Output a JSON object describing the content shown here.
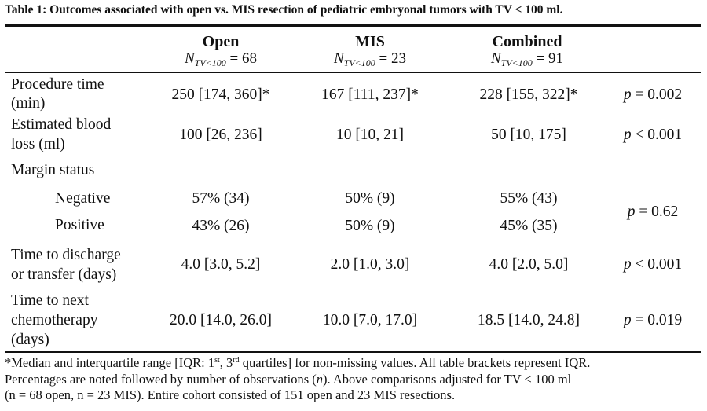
{
  "caption": "Table 1: Outcomes associated with open vs. MIS resection of pediatric embryonal tumors with TV < 100 ml.",
  "columns": [
    {
      "title": "Open",
      "n_symbol": "N",
      "n_sub": "TV<100",
      "n_value": "= 68"
    },
    {
      "title": "MIS",
      "n_symbol": "N",
      "n_sub": "TV<100",
      "n_value": "= 23"
    },
    {
      "title": "Combined",
      "n_symbol": "N",
      "n_sub": "TV<100",
      "n_value": "= 91"
    }
  ],
  "rows": {
    "procedure_time": {
      "label_1": "Procedure time",
      "label_2": "(min)",
      "open": "250 [174, 360]*",
      "mis": "167 [111, 237]*",
      "combined": "228 [155, 322]*",
      "p_symbol": "p",
      "p_value": "= 0.002"
    },
    "blood_loss": {
      "label_1": "Estimated blood",
      "label_2": "loss (ml)",
      "open": "100 [26, 236]",
      "mis": "10 [10, 21]",
      "combined": "50 [10, 175]",
      "p_symbol": "p",
      "p_value": "< 0.001"
    },
    "margin_status": {
      "label": "Margin status",
      "negative": {
        "label": "Negative",
        "open": "57% (34)",
        "mis": "50% (9)",
        "combined": "55% (43)"
      },
      "positive": {
        "label": "Positive",
        "open": "43% (26)",
        "mis": "50% (9)",
        "combined": "45% (35)"
      },
      "p_symbol": "p",
      "p_value": "= 0.62"
    },
    "discharge": {
      "label_1": "Time to discharge",
      "label_2": "or transfer (days)",
      "open": "4.0 [3.0, 5.2]",
      "mis": "2.0 [1.0, 3.0]",
      "combined": "4.0 [2.0, 5.0]",
      "p_symbol": "p",
      "p_value": "< 0.001"
    },
    "chemotherapy": {
      "label_1": "Time to next",
      "label_2": "chemotherapy",
      "label_3": "(days)",
      "open": "20.0 [14.0, 26.0]",
      "mis": "10.0 [7.0, 17.0]",
      "combined": "18.5 [14.0, 24.8]",
      "p_symbol": "p",
      "p_value": "= 0.019"
    }
  },
  "footnote": {
    "line1_a": "*Median and interquartile range [IQR: 1",
    "line1_sup1": "st",
    "line1_b": ", 3",
    "line1_sup2": "rd",
    "line1_c": " quartiles] for non-missing values. All table brackets represent IQR.",
    "line2_a": "Percentages are noted followed by number of observations (",
    "line2_n": "n",
    "line2_b": "). Above comparisons adjusted for TV < 100 ml",
    "line3": "(n = 68 open, n = 23 MIS). Entire cohort consisted of 151 open and 23 MIS resections."
  }
}
